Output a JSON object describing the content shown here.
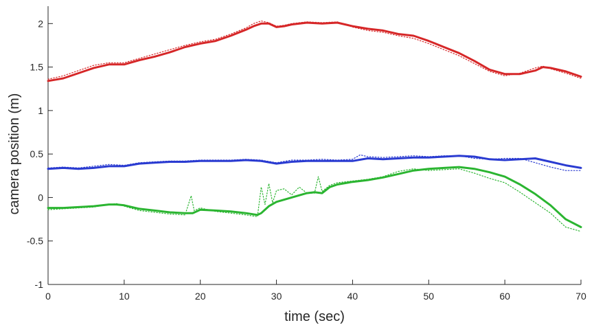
{
  "chart_data": {
    "type": "line",
    "title": "",
    "xlabel": "time (sec)",
    "ylabel": "camera position (m)",
    "xlim": [
      0,
      70
    ],
    "ylim": [
      -1,
      2.2
    ],
    "xticks": [
      0,
      10,
      20,
      30,
      40,
      50,
      60,
      70
    ],
    "xtick_labels": [
      "0",
      "10",
      "20",
      "30",
      "40",
      "50",
      "60",
      "70"
    ],
    "yticks": [
      -1,
      -0.5,
      0,
      0.5,
      1,
      1.5,
      2
    ],
    "ytick_labels": [
      "-1",
      "-0.5",
      "0",
      "0.5",
      "1",
      "1.5",
      "2"
    ],
    "grid": false,
    "legend": "none",
    "series": [
      {
        "color": "#d62728",
        "style": "solid",
        "x": [
          0,
          2,
          4,
          6,
          8,
          10,
          12,
          14,
          16,
          18,
          20,
          22,
          24,
          26,
          27,
          28,
          29,
          30,
          31,
          32,
          34,
          36,
          38,
          40,
          42,
          44,
          46,
          48,
          50,
          52,
          54,
          56,
          58,
          60,
          62,
          64,
          65,
          66,
          68,
          70
        ],
        "y": [
          1.34,
          1.37,
          1.43,
          1.49,
          1.53,
          1.53,
          1.58,
          1.62,
          1.67,
          1.73,
          1.77,
          1.8,
          1.86,
          1.93,
          1.97,
          2.0,
          2.0,
          1.96,
          1.97,
          1.99,
          2.01,
          2.0,
          2.01,
          1.97,
          1.94,
          1.92,
          1.88,
          1.86,
          1.8,
          1.73,
          1.66,
          1.57,
          1.47,
          1.42,
          1.42,
          1.46,
          1.5,
          1.49,
          1.45,
          1.39
        ]
      },
      {
        "color": "#d62728",
        "style": "dotted",
        "x": [
          0,
          2,
          4,
          6,
          8,
          10,
          12,
          14,
          16,
          18,
          20,
          22,
          24,
          26,
          27,
          28,
          29,
          30,
          31,
          32,
          34,
          36,
          38,
          40,
          42,
          44,
          46,
          48,
          50,
          52,
          54,
          56,
          58,
          60,
          62,
          64,
          65,
          66,
          68,
          70
        ],
        "y": [
          1.36,
          1.4,
          1.46,
          1.52,
          1.55,
          1.55,
          1.6,
          1.65,
          1.7,
          1.75,
          1.79,
          1.82,
          1.88,
          1.95,
          2.0,
          2.03,
          2.01,
          1.97,
          1.98,
          2.0,
          2.02,
          2.01,
          2.02,
          1.96,
          1.92,
          1.9,
          1.86,
          1.83,
          1.77,
          1.7,
          1.63,
          1.54,
          1.45,
          1.4,
          1.43,
          1.49,
          1.51,
          1.48,
          1.43,
          1.37
        ]
      },
      {
        "color": "#2a3bd1",
        "style": "solid",
        "x": [
          0,
          2,
          4,
          6,
          8,
          10,
          12,
          14,
          16,
          18,
          20,
          22,
          24,
          26,
          28,
          30,
          32,
          34,
          36,
          38,
          40,
          42,
          44,
          46,
          48,
          50,
          52,
          54,
          56,
          58,
          60,
          62,
          64,
          66,
          68,
          70
        ],
        "y": [
          0.33,
          0.34,
          0.33,
          0.34,
          0.36,
          0.36,
          0.39,
          0.4,
          0.41,
          0.41,
          0.42,
          0.42,
          0.42,
          0.43,
          0.42,
          0.39,
          0.41,
          0.42,
          0.42,
          0.42,
          0.42,
          0.45,
          0.44,
          0.45,
          0.46,
          0.46,
          0.47,
          0.48,
          0.47,
          0.44,
          0.43,
          0.44,
          0.45,
          0.41,
          0.37,
          0.34
        ]
      },
      {
        "color": "#2a3bd1",
        "style": "dotted",
        "x": [
          0,
          2,
          4,
          6,
          8,
          10,
          12,
          14,
          16,
          18,
          20,
          22,
          24,
          26,
          28,
          30,
          32,
          34,
          36,
          38,
          40,
          41,
          42,
          44,
          46,
          48,
          50,
          52,
          54,
          56,
          58,
          60,
          62,
          64,
          66,
          68,
          70
        ],
        "y": [
          0.34,
          0.35,
          0.34,
          0.36,
          0.38,
          0.37,
          0.4,
          0.41,
          0.42,
          0.42,
          0.43,
          0.43,
          0.43,
          0.44,
          0.43,
          0.4,
          0.43,
          0.43,
          0.44,
          0.43,
          0.44,
          0.49,
          0.47,
          0.46,
          0.47,
          0.48,
          0.47,
          0.48,
          0.48,
          0.45,
          0.44,
          0.45,
          0.45,
          0.4,
          0.35,
          0.31,
          0.31
        ]
      },
      {
        "color": "#2bb531",
        "style": "solid",
        "x": [
          0,
          2,
          4,
          6,
          8,
          9,
          10,
          12,
          14,
          16,
          18,
          19,
          20,
          22,
          24,
          26,
          27.5,
          28,
          29,
          30,
          32,
          34,
          35,
          36,
          37,
          38,
          40,
          42,
          44,
          46,
          48,
          50,
          52,
          54,
          56,
          58,
          60,
          62,
          64,
          66,
          68,
          70
        ],
        "y": [
          -0.12,
          -0.12,
          -0.11,
          -0.1,
          -0.08,
          -0.08,
          -0.09,
          -0.13,
          -0.15,
          -0.17,
          -0.18,
          -0.18,
          -0.14,
          -0.15,
          -0.16,
          -0.18,
          -0.2,
          -0.18,
          -0.1,
          -0.05,
          0.0,
          0.05,
          0.06,
          0.05,
          0.12,
          0.15,
          0.18,
          0.2,
          0.23,
          0.27,
          0.31,
          0.33,
          0.34,
          0.35,
          0.33,
          0.29,
          0.24,
          0.15,
          0.04,
          -0.09,
          -0.25,
          -0.34
        ]
      },
      {
        "color": "#2bb531",
        "style": "dotted",
        "x": [
          0,
          2,
          4,
          6,
          8,
          9,
          10,
          12,
          14,
          16,
          18,
          18.8,
          19.2,
          20,
          22,
          24,
          26,
          27.5,
          28,
          28.5,
          29,
          29.5,
          30,
          31,
          32,
          33,
          34,
          35,
          35.5,
          36,
          37,
          38,
          40,
          42,
          44,
          46,
          48,
          50,
          52,
          54,
          56,
          58,
          60,
          62,
          64,
          66,
          68,
          70
        ],
        "y": [
          -0.14,
          -0.13,
          -0.12,
          -0.11,
          -0.08,
          -0.07,
          -0.1,
          -0.15,
          -0.17,
          -0.19,
          -0.2,
          0.02,
          -0.15,
          -0.12,
          -0.16,
          -0.18,
          -0.2,
          -0.22,
          0.12,
          -0.08,
          0.16,
          -0.06,
          0.08,
          0.1,
          0.03,
          0.12,
          0.05,
          0.05,
          0.24,
          0.07,
          0.14,
          0.17,
          0.19,
          0.21,
          0.24,
          0.3,
          0.33,
          0.31,
          0.32,
          0.33,
          0.28,
          0.22,
          0.17,
          0.06,
          -0.06,
          -0.18,
          -0.34,
          -0.39
        ]
      }
    ]
  }
}
